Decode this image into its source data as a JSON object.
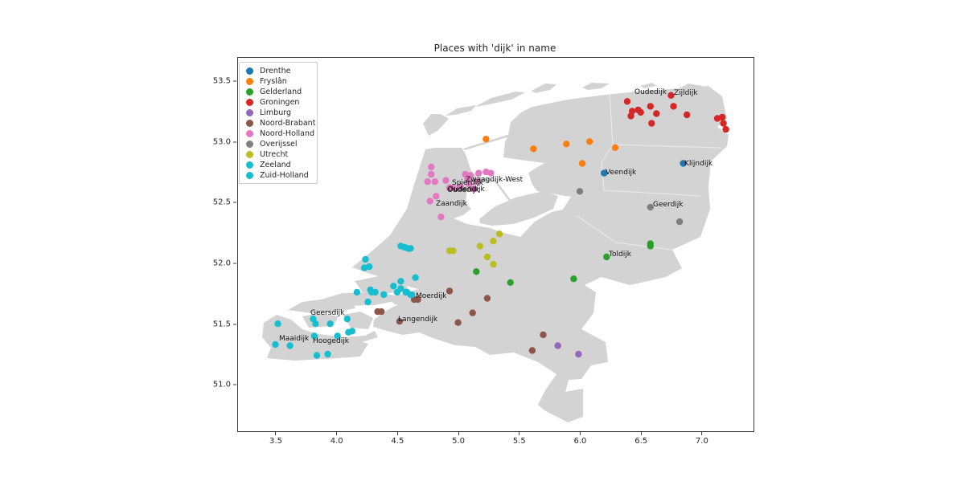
{
  "title": "Places with 'dijk' in name",
  "axes": {
    "xlim": [
      3.183,
      7.417
    ],
    "ylim": [
      50.626,
      53.699
    ],
    "x_tick_values": [
      3.5,
      4.0,
      4.5,
      5.0,
      5.5,
      6.0,
      6.5,
      7.0
    ],
    "x_tick_labels": [
      "3.5",
      "4.0",
      "4.5",
      "5.0",
      "5.5",
      "6.0",
      "6.5",
      "7.0"
    ],
    "y_tick_values": [
      51.0,
      51.5,
      52.0,
      52.5,
      53.0,
      53.5
    ],
    "y_tick_labels": [
      "51.0",
      "51.5",
      "52.0",
      "52.5",
      "53.0",
      "53.5"
    ]
  },
  "legend": {
    "items": [
      {
        "label": "Drenthe",
        "color": "#1f77b4"
      },
      {
        "label": "Fryslân",
        "color": "#ff7f0e"
      },
      {
        "label": "Gelderland",
        "color": "#2ca02c"
      },
      {
        "label": "Groningen",
        "color": "#d62728"
      },
      {
        "label": "Limburg",
        "color": "#9467bd"
      },
      {
        "label": "Noord-Brabant",
        "color": "#8c564b"
      },
      {
        "label": "Noord-Holland",
        "color": "#e377c2"
      },
      {
        "label": "Overijssel",
        "color": "#7f7f7f"
      },
      {
        "label": "Utrecht",
        "color": "#bcbd22"
      },
      {
        "label": "Zeeland",
        "color": "#17becf"
      },
      {
        "label": "Zuid-Holland",
        "color": "#17becf"
      }
    ]
  },
  "map": {
    "land_color": "#d3d3d3",
    "sea_color": "#ffffff"
  },
  "chart_data": {
    "type": "scatter",
    "title": "Places with 'dijk' in name",
    "xlabel": "",
    "ylabel": "",
    "xlim": [
      3.183,
      7.417
    ],
    "ylim": [
      50.626,
      53.699
    ],
    "legend_position": "upper left",
    "grid": false,
    "series": [
      {
        "name": "Drenthe",
        "color": "#1f77b4",
        "points": [
          [
            6.19,
            52.75
          ],
          [
            6.84,
            52.83
          ]
        ]
      },
      {
        "name": "Fryslân",
        "color": "#ff7f0e",
        "points": [
          [
            5.22,
            53.03
          ],
          [
            5.61,
            52.95
          ],
          [
            5.88,
            52.99
          ],
          [
            6.07,
            53.01
          ],
          [
            6.28,
            52.96
          ],
          [
            6.01,
            52.83
          ]
        ]
      },
      {
        "name": "Gelderland",
        "color": "#2ca02c",
        "points": [
          [
            5.14,
            51.94
          ],
          [
            5.42,
            51.85
          ],
          [
            5.94,
            51.88
          ],
          [
            6.57,
            52.17
          ],
          [
            6.57,
            52.15
          ],
          [
            6.21,
            52.06
          ]
        ]
      },
      {
        "name": "Groningen",
        "color": "#d62728",
        "points": [
          [
            6.38,
            53.34
          ],
          [
            6.57,
            53.3
          ],
          [
            6.74,
            53.39
          ],
          [
            6.76,
            53.3
          ],
          [
            6.42,
            53.26
          ],
          [
            6.47,
            53.27
          ],
          [
            6.49,
            53.25
          ],
          [
            6.41,
            53.22
          ],
          [
            6.62,
            53.24
          ],
          [
            6.87,
            53.23
          ],
          [
            6.58,
            53.16
          ],
          [
            7.12,
            53.2
          ],
          [
            7.16,
            53.21
          ],
          [
            7.17,
            53.16
          ],
          [
            7.19,
            53.11
          ]
        ]
      },
      {
        "name": "Limburg",
        "color": "#9467bd",
        "points": [
          [
            5.81,
            51.33
          ],
          [
            5.98,
            51.26
          ]
        ]
      },
      {
        "name": "Noord-Brabant",
        "color": "#8c564b",
        "points": [
          [
            4.63,
            51.71
          ],
          [
            4.66,
            51.71
          ],
          [
            4.51,
            51.53
          ],
          [
            4.33,
            51.61
          ],
          [
            4.36,
            51.61
          ],
          [
            4.92,
            51.78
          ],
          [
            5.23,
            51.72
          ],
          [
            5.11,
            51.6
          ],
          [
            4.99,
            51.52
          ],
          [
            5.69,
            51.42
          ],
          [
            5.6,
            51.29
          ]
        ]
      },
      {
        "name": "Noord-Holland",
        "color": "#e377c2",
        "points": [
          [
            4.77,
            52.8
          ],
          [
            4.77,
            52.74
          ],
          [
            4.74,
            52.68
          ],
          [
            4.8,
            52.68
          ],
          [
            4.89,
            52.69
          ],
          [
            4.92,
            52.63
          ],
          [
            4.95,
            52.63
          ],
          [
            4.81,
            52.56
          ],
          [
            4.76,
            52.52
          ],
          [
            4.85,
            52.39
          ],
          [
            5.05,
            52.74
          ],
          [
            5.09,
            52.73
          ],
          [
            5.07,
            52.7
          ],
          [
            5.15,
            52.68
          ],
          [
            5.16,
            52.75
          ],
          [
            5.22,
            52.76
          ],
          [
            5.26,
            52.75
          ],
          [
            5.08,
            52.66
          ],
          [
            5.01,
            52.64
          ],
          [
            5.12,
            52.62
          ]
        ]
      },
      {
        "name": "Overijssel",
        "color": "#7f7f7f",
        "points": [
          [
            5.99,
            52.6
          ],
          [
            6.57,
            52.47
          ],
          [
            6.81,
            52.35
          ]
        ]
      },
      {
        "name": "Utrecht",
        "color": "#bcbd22",
        "points": [
          [
            4.92,
            52.11
          ],
          [
            4.95,
            52.11
          ],
          [
            5.17,
            52.15
          ],
          [
            5.23,
            52.06
          ],
          [
            5.28,
            52.19
          ],
          [
            5.33,
            52.25
          ],
          [
            5.28,
            52.0
          ]
        ]
      },
      {
        "name": "Zeeland",
        "color": "#17becf",
        "points": [
          [
            3.51,
            51.51
          ],
          [
            3.49,
            51.34
          ],
          [
            3.61,
            51.33
          ],
          [
            3.8,
            51.55
          ],
          [
            3.82,
            51.51
          ],
          [
            3.94,
            51.51
          ],
          [
            4.08,
            51.55
          ],
          [
            4.09,
            51.44
          ],
          [
            4.12,
            51.45
          ],
          [
            3.81,
            51.41
          ],
          [
            4.0,
            51.41
          ],
          [
            3.83,
            51.25
          ],
          [
            3.92,
            51.26
          ]
        ]
      },
      {
        "name": "Zuid-Holland",
        "color": "#17becf",
        "points": [
          [
            4.23,
            52.04
          ],
          [
            4.26,
            51.98
          ],
          [
            4.22,
            51.97
          ],
          [
            4.52,
            52.15
          ],
          [
            4.55,
            52.14
          ],
          [
            4.58,
            52.13
          ],
          [
            4.6,
            52.13
          ],
          [
            4.64,
            51.89
          ],
          [
            4.46,
            51.82
          ],
          [
            4.52,
            51.86
          ],
          [
            4.52,
            51.8
          ],
          [
            4.56,
            51.77
          ],
          [
            4.27,
            51.79
          ],
          [
            4.31,
            51.77
          ],
          [
            4.38,
            51.75
          ],
          [
            4.25,
            51.69
          ],
          [
            4.6,
            51.75
          ],
          [
            4.16,
            51.77
          ],
          [
            4.28,
            51.77
          ],
          [
            4.49,
            51.77
          ],
          [
            4.57,
            51.77
          ],
          [
            4.61,
            51.75
          ]
        ]
      }
    ],
    "annotations": [
      {
        "text": "Oudedijk",
        "lon": 6.44,
        "lat": 53.45
      },
      {
        "text": "Zijldijk",
        "lon": 6.76,
        "lat": 53.44
      },
      {
        "text": "Klijndijk",
        "lon": 6.85,
        "lat": 52.86
      },
      {
        "text": "Veendijk",
        "lon": 6.2,
        "lat": 52.79
      },
      {
        "text": "Geerdijk",
        "lon": 6.59,
        "lat": 52.52
      },
      {
        "text": "Toldijk",
        "lon": 6.23,
        "lat": 52.11
      },
      {
        "text": "Zwaagdijk-West",
        "lon": 5.05,
        "lat": 52.73
      },
      {
        "text": "Spierdijk",
        "lon": 4.94,
        "lat": 52.7
      },
      {
        "text": "Oudendijk",
        "lon": 4.91,
        "lat": 52.645
      },
      {
        "text": "Oudedijk",
        "lon": 4.9,
        "lat": 52.64
      },
      {
        "text": "Zaandijk",
        "lon": 4.81,
        "lat": 52.53
      },
      {
        "text": "Moerdijk",
        "lon": 4.64,
        "lat": 51.77
      },
      {
        "text": "Langendijk",
        "lon": 4.5,
        "lat": 51.58
      },
      {
        "text": "Geersdijk",
        "lon": 3.78,
        "lat": 51.63
      },
      {
        "text": "Maaidijk",
        "lon": 3.52,
        "lat": 51.42
      },
      {
        "text": "Hoogedijk",
        "lon": 3.8,
        "lat": 51.4
      }
    ]
  }
}
